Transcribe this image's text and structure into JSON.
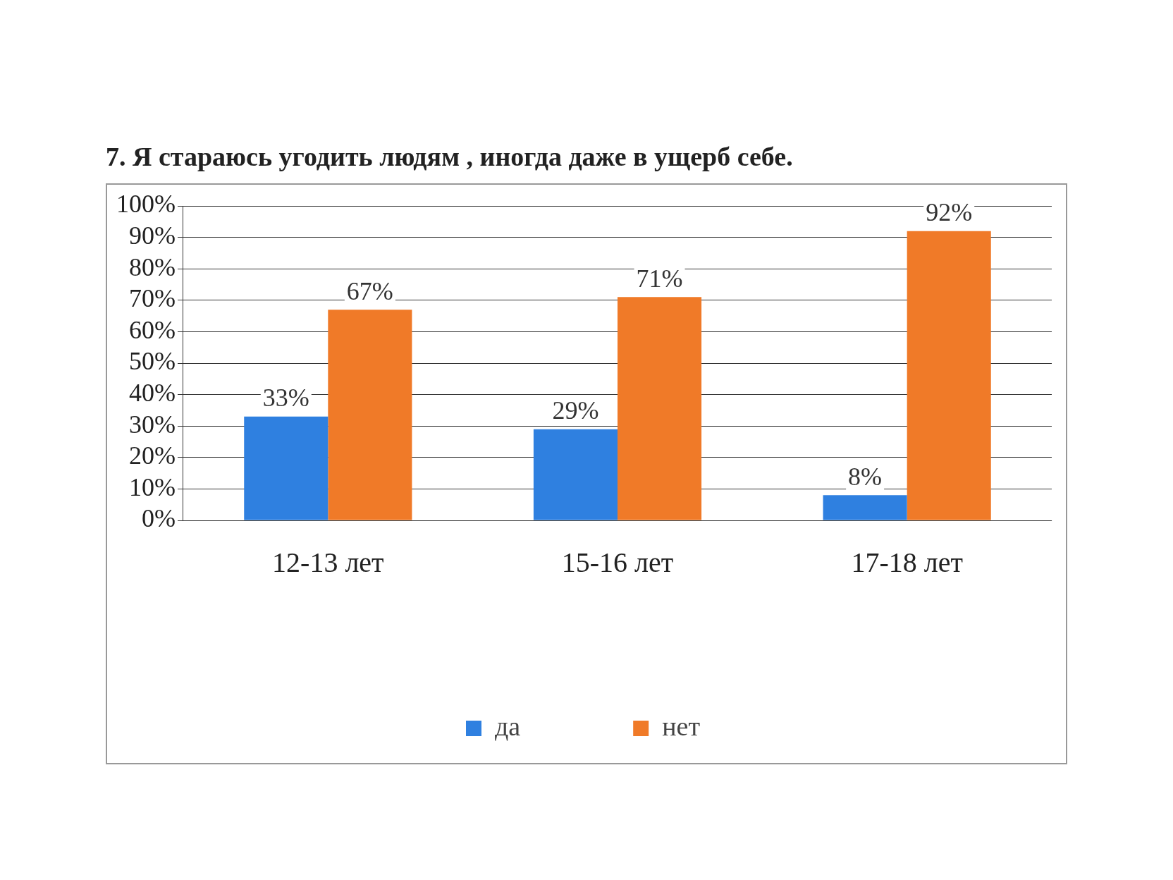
{
  "chart_data": {
    "type": "bar",
    "title": "7. Я стараюсь угодить людям , иногда даже в ущерб себе.",
    "categories": [
      "12-13 лет",
      "15-16 лет",
      "17-18 лет"
    ],
    "series": [
      {
        "name": "да",
        "color": "#2f80e0",
        "values": [
          33,
          29,
          8
        ],
        "value_labels": [
          "33%",
          "29%",
          "8%"
        ]
      },
      {
        "name": "нет",
        "color": "#f07a28",
        "values": [
          67,
          71,
          92
        ],
        "value_labels": [
          "67%",
          "71%",
          "92%"
        ]
      }
    ],
    "ylim": [
      0,
      100
    ],
    "yticks": [
      {
        "value": 0,
        "label": "0%"
      },
      {
        "value": 10,
        "label": "10%"
      },
      {
        "value": 20,
        "label": "20%"
      },
      {
        "value": 30,
        "label": "30%"
      },
      {
        "value": 40,
        "label": "40%"
      },
      {
        "value": 50,
        "label": "50%"
      },
      {
        "value": 60,
        "label": "60%"
      },
      {
        "value": 70,
        "label": "70%"
      },
      {
        "value": 80,
        "label": "80%"
      },
      {
        "value": 90,
        "label": "90%"
      },
      {
        "value": 100,
        "label": "100%"
      }
    ],
    "grid": "y",
    "legend": "bottom"
  }
}
